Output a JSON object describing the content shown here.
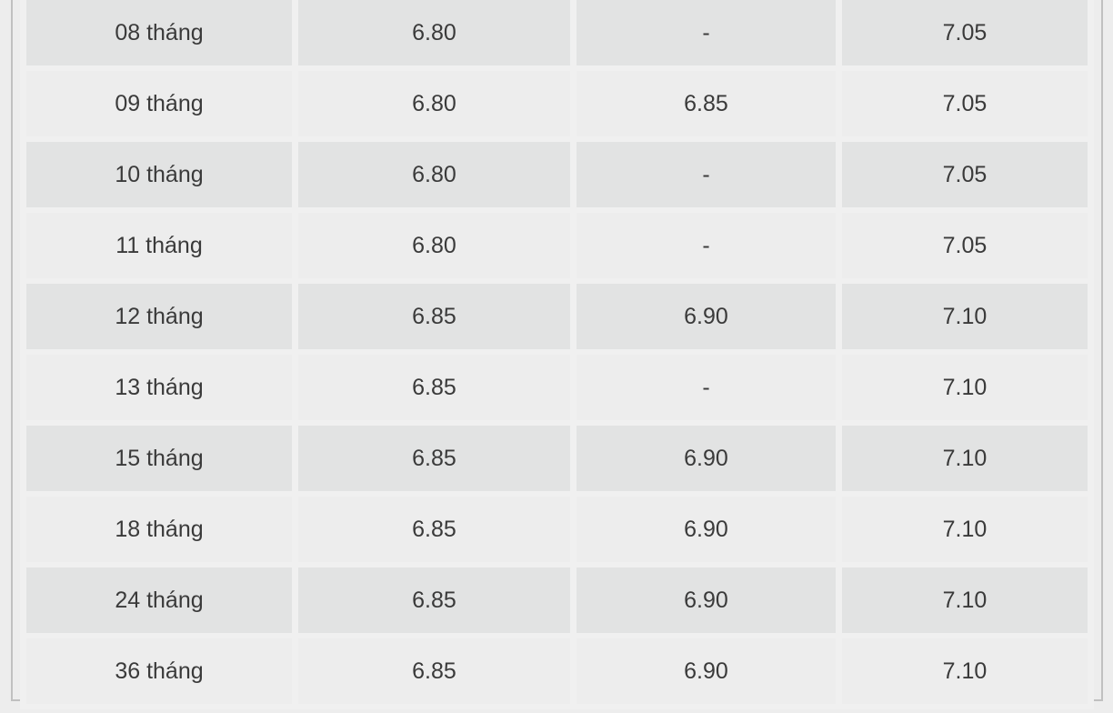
{
  "page": {
    "background_color": "#ededed",
    "description_colors": {
      "row_dark": "#e2e3e3",
      "row_light": "#ededed",
      "cell_gap": "#f0f0f0",
      "panel_border": "#c0c0c0",
      "text": "#3a3a3a"
    }
  },
  "table": {
    "type": "table",
    "rows": [
      {
        "term": "08 tháng",
        "rate1": "6.80",
        "rate2": "-",
        "rate3": "7.05"
      },
      {
        "term": "09 tháng",
        "rate1": "6.80",
        "rate2": "6.85",
        "rate3": "7.05"
      },
      {
        "term": "10 tháng",
        "rate1": "6.80",
        "rate2": "-",
        "rate3": "7.05"
      },
      {
        "term": "11 tháng",
        "rate1": "6.80",
        "rate2": "-",
        "rate3": "7.05"
      },
      {
        "term": "12 tháng",
        "rate1": "6.85",
        "rate2": "6.90",
        "rate3": "7.10"
      },
      {
        "term": "13 tháng",
        "rate1": "6.85",
        "rate2": "-",
        "rate3": "7.10"
      },
      {
        "term": "15 tháng",
        "rate1": "6.85",
        "rate2": "6.90",
        "rate3": "7.10"
      },
      {
        "term": "18 tháng",
        "rate1": "6.85",
        "rate2": "6.90",
        "rate3": "7.10"
      },
      {
        "term": "24 tháng",
        "rate1": "6.85",
        "rate2": "6.90",
        "rate3": "7.10"
      },
      {
        "term": "36 tháng",
        "rate1": "6.85",
        "rate2": "6.90",
        "rate3": "7.10"
      }
    ]
  }
}
